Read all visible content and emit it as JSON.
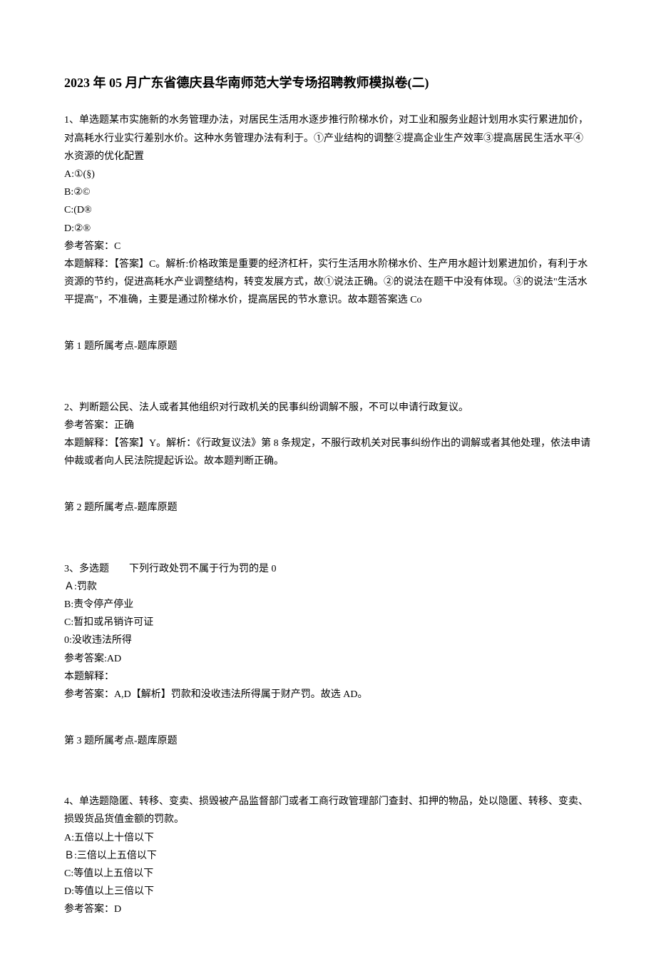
{
  "title": "2023 年 05 月广东省德庆县华南师范大学专场招聘教师模拟卷(二)",
  "questions": [
    {
      "stem": "1、单选题某市实施新的水务管理办法，对居民生活用水逐步推行阶梯水价，对工业和服务业超计划用水实行累进加价，对高耗水行业实行差别水价。这种水务管理办法有利于。①产业结构的调整②提高企业生产效率③提高居民生活水平④水资源的优化配置",
      "options": [
        "A:①(§)",
        "B:②©",
        "C:(D®",
        "D:②®"
      ],
      "answer_label": "参考答案：C",
      "explanation": "本题解释：【答案】C。解析:价格政策是重要的经济杠杆，实行生活用水阶梯水价、生产用水超计划累进加价，有利于水资源的节约，促进高耗水产业调整结构，转变发展方式，故①说法正确。②的说法在题干中没有体现。③的说法\"生活水平提高\"，不准确，主要是通过阶梯水价，提高居民的节水意识。故本题答案选 Co",
      "topic_ref": "第 1 题所属考点-题库原题"
    },
    {
      "stem": "2、判断题公民、法人或者其他组织对行政机关的民事纠纷调解不服，不可以申请行政复议。",
      "options": [],
      "answer_label": "参考答案：正确",
      "explanation": "本题解释：【答案】Y。解析：《行政复议法》第 8 条规定，不服行政机关对民事纠纷作出的调解或者其他处理，依法申请仲裁或者向人民法院提起诉讼。故本题判断正确。",
      "topic_ref": "第 2 题所属考点-题库原题"
    },
    {
      "stem": "3、多选题　　下列行政处罚不属于行为罚的是 0",
      "options": [
        "Ａ:罚款",
        "B:责令停产停业",
        "C:暂扣或吊销许可证",
        "0:没收违法所得"
      ],
      "answer_label": "参考答案:AD",
      "explanation": "本题解释：\n参考答案：A,D【解析】罚款和没收违法所得属于财产罚。故选 AD。",
      "topic_ref": "第 3 题所属考点-题库原题"
    },
    {
      "stem": "4、单选题隐匿、转移、变卖、损毁被产品监督部门或者工商行政管理部门查封、扣押的物品，处以隐匿、转移、变卖、损毁货品货值金额的罚款。",
      "options": [
        "A:五倍以上十倍以下",
        "Ｂ:三倍以上五倍以下",
        "C:等值以上五倍以下",
        "D:等值以上三倍以下"
      ],
      "answer_label": "参考答案：D",
      "explanation": "",
      "topic_ref": ""
    }
  ]
}
